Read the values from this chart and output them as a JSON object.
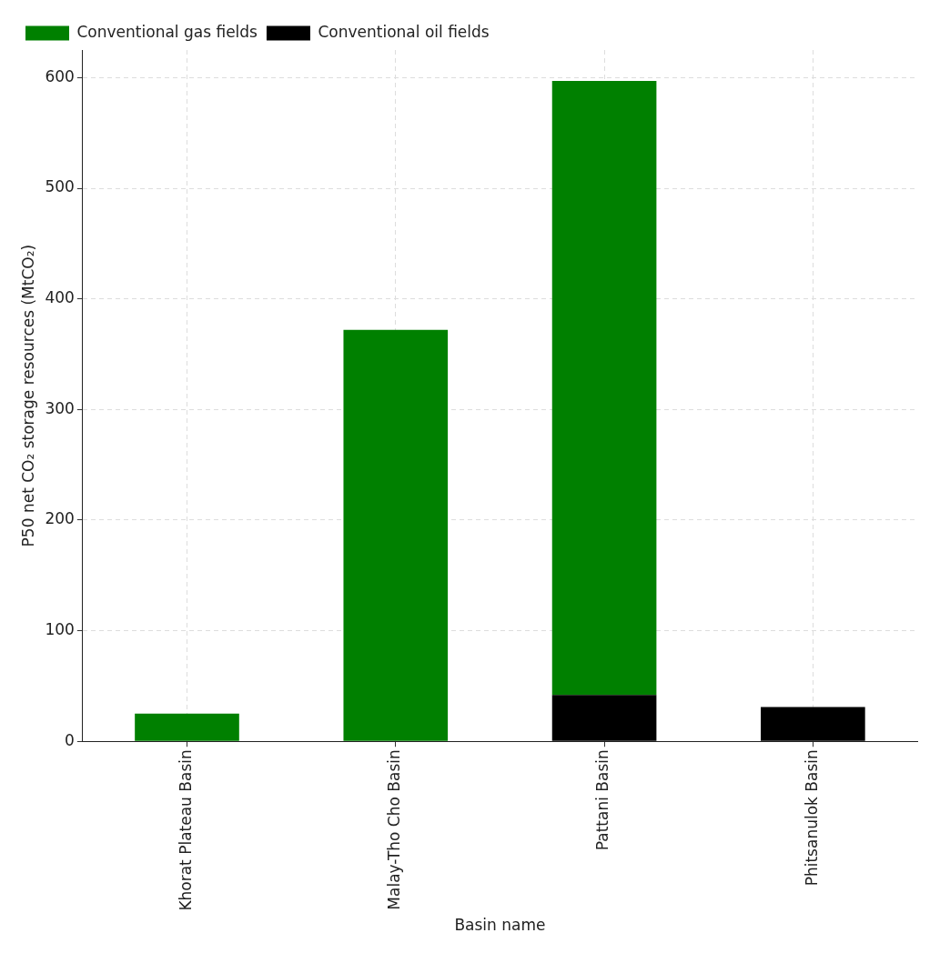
{
  "chart_data": {
    "type": "bar",
    "stacked": true,
    "xlabel": "Basin name",
    "ylabel": "P50 net CO₂ storage resources (MtCO₂)",
    "categories": [
      "Khorat Plateau Basin",
      "Malay-Tho Cho Basin",
      "Pattani Basin",
      "Phitsanulok Basin"
    ],
    "series": [
      {
        "name": "Conventional oil fields",
        "color": "#000000",
        "values": [
          0,
          0,
          42,
          31
        ]
      },
      {
        "name": "Conventional gas fields",
        "color": "#008000",
        "values": [
          25,
          372,
          555,
          0
        ]
      }
    ],
    "ylim": [
      0,
      625
    ],
    "yticks": [
      0,
      100,
      200,
      300,
      400,
      500,
      600
    ],
    "grid": true,
    "legend": "top left"
  }
}
